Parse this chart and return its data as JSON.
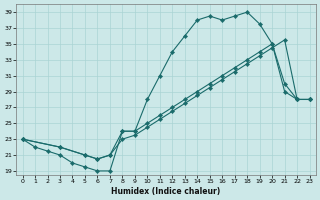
{
  "xlabel": "Humidex (Indice chaleur)",
  "background_color": "#cce8e8",
  "grid_color": "#aad4d4",
  "line_color": "#1a6b6b",
  "xlim": [
    -0.5,
    23.5
  ],
  "ylim": [
    18.5,
    40
  ],
  "xticks": [
    0,
    1,
    2,
    3,
    4,
    5,
    6,
    7,
    8,
    9,
    10,
    11,
    12,
    13,
    14,
    15,
    16,
    17,
    18,
    19,
    20,
    21,
    22,
    23
  ],
  "yticks": [
    19,
    21,
    23,
    25,
    27,
    29,
    31,
    33,
    35,
    37,
    39
  ],
  "line1_x": [
    0,
    1,
    2,
    3,
    4,
    5,
    6,
    7,
    8,
    9,
    10,
    11,
    12,
    13,
    14,
    15,
    16,
    17,
    18,
    19,
    20,
    21,
    22,
    23
  ],
  "line1_y": [
    23,
    22,
    21.5,
    21,
    20,
    19.5,
    19,
    19,
    24,
    24,
    28,
    31,
    34,
    36,
    38,
    38.5,
    38,
    38.5,
    39,
    37.5,
    35,
    30,
    28,
    28
  ],
  "line2_x": [
    0,
    3,
    5,
    6,
    7,
    8,
    9,
    10,
    11,
    12,
    13,
    14,
    15,
    16,
    17,
    18,
    19,
    20,
    21,
    22,
    23
  ],
  "line2_y": [
    23,
    22,
    21,
    20.5,
    21,
    24,
    24,
    25,
    26,
    27,
    28,
    29,
    30,
    31,
    32,
    33,
    34,
    35,
    29,
    28,
    28
  ],
  "line3_x": [
    0,
    3,
    5,
    6,
    7,
    8,
    9,
    10,
    11,
    12,
    13,
    14,
    15,
    16,
    17,
    18,
    19,
    20,
    21,
    22,
    23
  ],
  "line3_y": [
    23,
    22,
    21,
    20.5,
    21,
    23,
    23.5,
    24.5,
    25.5,
    26.5,
    27.5,
    28.5,
    29.5,
    30.5,
    31.5,
    32.5,
    33.5,
    34.5,
    35.5,
    28,
    28
  ]
}
